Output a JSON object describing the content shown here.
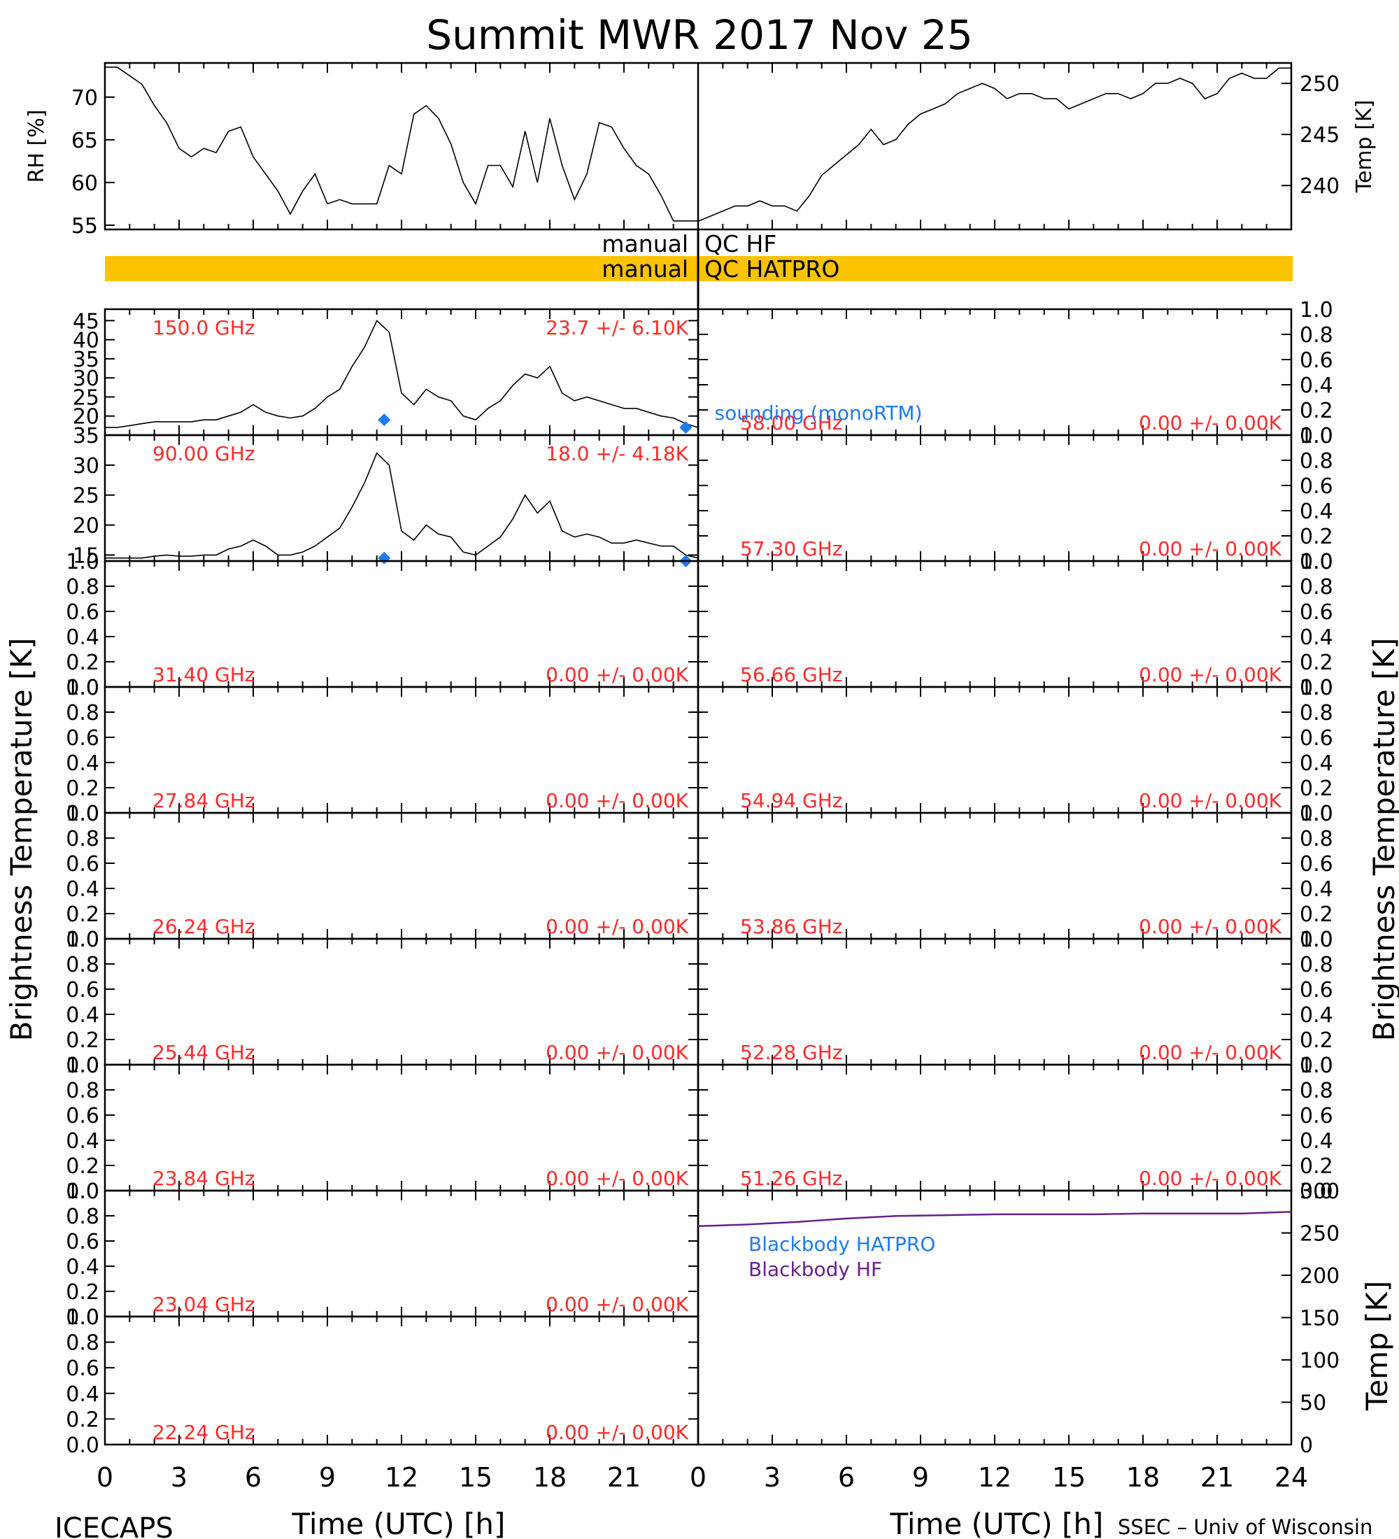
{
  "title": "Summit MWR 2017 Nov 25",
  "footer": {
    "left": "ICECAPS",
    "right": "SSEC – Univ of Wisconsin",
    "xlabel_left": "Time (UTC) [h]",
    "xlabel_right": "Time (UTC) [h]"
  },
  "colors": {
    "axis": "#000000",
    "freq_label": "#ff2a2a",
    "sounding": "#1e7bf0",
    "qc_bar": "#fbc300",
    "blackbody_hatpro": "#1e7bf0",
    "blackbody_hf": "#6a1f8a"
  },
  "ylabel_side": "Brightness Temperature [K]",
  "qc": {
    "hf": {
      "label_left": "manual",
      "label_right": "QC HF",
      "flagged": false
    },
    "hatpro": {
      "label_left": "manual",
      "label_right": "QC HATPRO",
      "flagged": true
    }
  },
  "chart_data": [
    {
      "type": "line",
      "name": "rh",
      "xlabel": "",
      "ylabel": "RH [%]",
      "xlim": [
        0,
        24
      ],
      "ylim": [
        54.5,
        74
      ],
      "yticks": [
        "55",
        "60",
        "65",
        "70"
      ],
      "x": [
        0,
        0.5,
        1,
        1.5,
        2,
        2.5,
        3,
        3.5,
        4,
        4.5,
        5,
        5.5,
        6,
        6.5,
        7,
        7.5,
        8,
        8.5,
        9,
        9.5,
        10,
        10.5,
        11,
        11.5,
        12,
        12.5,
        13,
        13.5,
        14,
        14.5,
        15,
        15.5,
        16,
        16.5,
        17,
        17.5,
        18,
        18.5,
        19,
        19.5,
        20,
        20.5,
        21,
        21.5,
        22,
        22.5,
        23,
        23.5,
        24
      ],
      "y": [
        73.5,
        73.5,
        72.5,
        71.5,
        69,
        67,
        64,
        63,
        64,
        63.5,
        66,
        66.5,
        63,
        61,
        59,
        56.3,
        59,
        61,
        57.5,
        58,
        57.5,
        57.5,
        57.5,
        62,
        61,
        68,
        69,
        67.5,
        64.5,
        60,
        57.5,
        62,
        62,
        59.5,
        66,
        60,
        67.5,
        62,
        58,
        61,
        67,
        66.5,
        64,
        62,
        61,
        58.5,
        55.5,
        55.5,
        55.5
      ]
    },
    {
      "type": "line",
      "name": "temp",
      "xlabel": "",
      "ylabel": "Temp [K]",
      "xlim": [
        0,
        24
      ],
      "ylim": [
        235.7,
        252
      ],
      "yticks": [
        "240",
        "245",
        "250"
      ],
      "x": [
        0,
        0.5,
        1,
        1.5,
        2,
        2.5,
        3,
        3.5,
        4,
        4.5,
        5,
        5.5,
        6,
        6.5,
        7,
        7.5,
        8,
        8.5,
        9,
        9.5,
        10,
        10.5,
        11,
        11.5,
        12,
        12.5,
        13,
        13.5,
        14,
        14.5,
        15,
        15.5,
        16,
        16.5,
        17,
        17.5,
        18,
        18.5,
        19,
        19.5,
        20,
        20.5,
        21,
        21.5,
        22,
        22.5,
        23,
        23.5,
        24
      ],
      "y": [
        236.5,
        237,
        237.5,
        238,
        238,
        238.5,
        238,
        238,
        237.5,
        239,
        241,
        242,
        243,
        244,
        245.5,
        244,
        244.5,
        246,
        247,
        247.5,
        248,
        249,
        249.5,
        250,
        249.5,
        248.5,
        249,
        249,
        248.5,
        248.5,
        247.5,
        248,
        248.5,
        249,
        249,
        248.5,
        249,
        250,
        250,
        250.5,
        250,
        248.5,
        249,
        250.5,
        251,
        250.5,
        250.5,
        251.5,
        251.5
      ]
    },
    {
      "type": "line",
      "name": "150.0 GHz",
      "label": "150.0 GHz",
      "stats": "23.7 +/-  6.10K",
      "xlim": [
        0,
        24
      ],
      "ylim": [
        15,
        48
      ],
      "yticks": [
        "20",
        "25",
        "30",
        "35",
        "40",
        "45"
      ],
      "x": [
        0,
        0.5,
        1,
        1.5,
        2,
        2.5,
        3,
        3.5,
        4,
        4.5,
        5,
        5.5,
        6,
        6.5,
        7,
        7.5,
        8,
        8.5,
        9,
        9.5,
        10,
        10.5,
        11,
        11.5,
        12,
        12.5,
        13,
        13.5,
        14,
        14.5,
        15,
        15.5,
        16,
        16.5,
        17,
        17.5,
        18,
        18.5,
        19,
        19.5,
        20,
        20.5,
        21,
        21.5,
        22,
        22.5,
        23,
        23.5,
        24
      ],
      "y": [
        17,
        17,
        17.5,
        18,
        18.5,
        18.5,
        18.5,
        18.5,
        19,
        19,
        20,
        21,
        23,
        21,
        20,
        19.5,
        20,
        22,
        25,
        27,
        33,
        38,
        45,
        42,
        26,
        23,
        27,
        25,
        24,
        20,
        19,
        22,
        24,
        28,
        31,
        30,
        33,
        26,
        24,
        25,
        24,
        23,
        22,
        22,
        21,
        20,
        19.5,
        18,
        17
      ],
      "sounding_x": [
        11.3,
        23.5
      ],
      "sounding_y": [
        19,
        17
      ]
    },
    {
      "type": "line",
      "name": "90.00 GHz",
      "label": "90.00 GHz",
      "stats": "18.0 +/-  4.18K",
      "xlim": [
        0,
        24
      ],
      "ylim": [
        14,
        35
      ],
      "yticks": [
        "15",
        "20",
        "25",
        "30",
        "35"
      ],
      "x": [
        0,
        0.5,
        1,
        1.5,
        2,
        2.5,
        3,
        3.5,
        4,
        4.5,
        5,
        5.5,
        6,
        6.5,
        7,
        7.5,
        8,
        8.5,
        9,
        9.5,
        10,
        10.5,
        11,
        11.5,
        12,
        12.5,
        13,
        13.5,
        14,
        14.5,
        15,
        15.5,
        16,
        16.5,
        17,
        17.5,
        18,
        18.5,
        19,
        19.5,
        20,
        20.5,
        21,
        21.5,
        22,
        22.5,
        23,
        23.5,
        24
      ],
      "y": [
        14.5,
        14.5,
        14.5,
        14.5,
        14.8,
        15,
        14.8,
        14.8,
        15,
        15,
        16,
        16.5,
        17.5,
        16.5,
        15,
        15,
        15.5,
        16.5,
        18,
        19.5,
        23,
        27,
        32,
        30,
        19,
        17.5,
        20,
        18.5,
        18,
        15.5,
        15,
        16.5,
        18,
        21,
        25,
        22,
        24,
        19,
        18,
        18.5,
        18,
        17,
        17,
        17.5,
        17,
        16.5,
        16.5,
        15,
        14.5
      ],
      "sounding_x": [
        11.3,
        23.5
      ],
      "sounding_y": [
        14.5,
        14
      ]
    },
    {
      "type": "line",
      "name": "58.00 GHz",
      "label": "58.00 GHz",
      "stats": "0.00 +/-  0.00K",
      "ylim": [
        0,
        1
      ],
      "x": [],
      "y": []
    },
    {
      "type": "line",
      "name": "57.30 GHz",
      "label": "57.30 GHz",
      "stats": "0.00 +/-  0.00K",
      "ylim": [
        0,
        1
      ],
      "x": [],
      "y": []
    },
    {
      "type": "line",
      "name": "31.40 GHz",
      "label": "31.40 GHz",
      "stats": "0.00 +/-  0.00K",
      "ylim": [
        0,
        1
      ],
      "x": [],
      "y": []
    },
    {
      "type": "line",
      "name": "56.66 GHz",
      "label": "56.66 GHz",
      "stats": "0.00 +/-  0.00K",
      "ylim": [
        0,
        1
      ],
      "x": [],
      "y": []
    },
    {
      "type": "line",
      "name": "27.84 GHz",
      "label": "27.84 GHz",
      "stats": "0.00 +/-  0.00K",
      "ylim": [
        0,
        1
      ],
      "x": [],
      "y": []
    },
    {
      "type": "line",
      "name": "54.94 GHz",
      "label": "54.94 GHz",
      "stats": "0.00 +/-  0.00K",
      "ylim": [
        0,
        1
      ],
      "x": [],
      "y": []
    },
    {
      "type": "line",
      "name": "26.24 GHz",
      "label": "26.24 GHz",
      "stats": "0.00 +/-  0.00K",
      "ylim": [
        0,
        1
      ],
      "x": [],
      "y": []
    },
    {
      "type": "line",
      "name": "53.86 GHz",
      "label": "53.86 GHz",
      "stats": "0.00 +/-  0.00K",
      "ylim": [
        0,
        1
      ],
      "x": [],
      "y": []
    },
    {
      "type": "line",
      "name": "25.44 GHz",
      "label": "25.44 GHz",
      "stats": "0.00 +/-  0.00K",
      "ylim": [
        0,
        1
      ],
      "x": [],
      "y": []
    },
    {
      "type": "line",
      "name": "52.28 GHz",
      "label": "52.28 GHz",
      "stats": "0.00 +/-  0.00K",
      "ylim": [
        0,
        1
      ],
      "x": [],
      "y": []
    },
    {
      "type": "line",
      "name": "23.84 GHz",
      "label": "23.84 GHz",
      "stats": "0.00 +/-  0.00K",
      "ylim": [
        0,
        1
      ],
      "x": [],
      "y": []
    },
    {
      "type": "line",
      "name": "51.26 GHz",
      "label": "51.26 GHz",
      "stats": "0.00 +/-  0.00K",
      "ylim": [
        0,
        1
      ],
      "x": [],
      "y": []
    },
    {
      "type": "line",
      "name": "23.04 GHz",
      "label": "23.04 GHz",
      "stats": "0.00 +/-  0.00K",
      "ylim": [
        0,
        1
      ],
      "x": [],
      "y": []
    },
    {
      "type": "line",
      "name": "22.24 GHz",
      "label": "22.24 GHz",
      "stats": "0.00 +/-  0.00K",
      "ylim": [
        0,
        1
      ],
      "x": [],
      "y": []
    },
    {
      "type": "line",
      "name": "blackbody",
      "ylabel": "Temp [K]",
      "xlim": [
        0,
        24
      ],
      "ylim": [
        0,
        300
      ],
      "yticks": [
        "0",
        "50",
        "100",
        "150",
        "200",
        "250",
        "300"
      ],
      "xticks": [
        "0",
        "3",
        "6",
        "9",
        "12",
        "15",
        "18",
        "21",
        "24"
      ],
      "series": [
        {
          "name": "Blackbody HATPRO",
          "x": [],
          "y": []
        },
        {
          "name": "Blackbody HF",
          "x": [
            0,
            2,
            4,
            6,
            8,
            10,
            12,
            14,
            16,
            18,
            20,
            22,
            24
          ],
          "y": [
            258,
            260,
            263,
            267,
            270,
            271,
            272,
            272,
            272,
            273,
            273,
            273,
            275
          ]
        }
      ]
    }
  ],
  "xticks_left": [
    "0",
    "3",
    "6",
    "9",
    "12",
    "15",
    "18",
    "21"
  ],
  "xticks_right": [
    "0",
    "3",
    "6",
    "9",
    "12",
    "15",
    "18",
    "21",
    "24"
  ],
  "unit_yticks": [
    "0.0",
    "0.2",
    "0.4",
    "0.6",
    "0.8",
    "1.0"
  ],
  "sounding_label": "sounding (monoRTM)"
}
